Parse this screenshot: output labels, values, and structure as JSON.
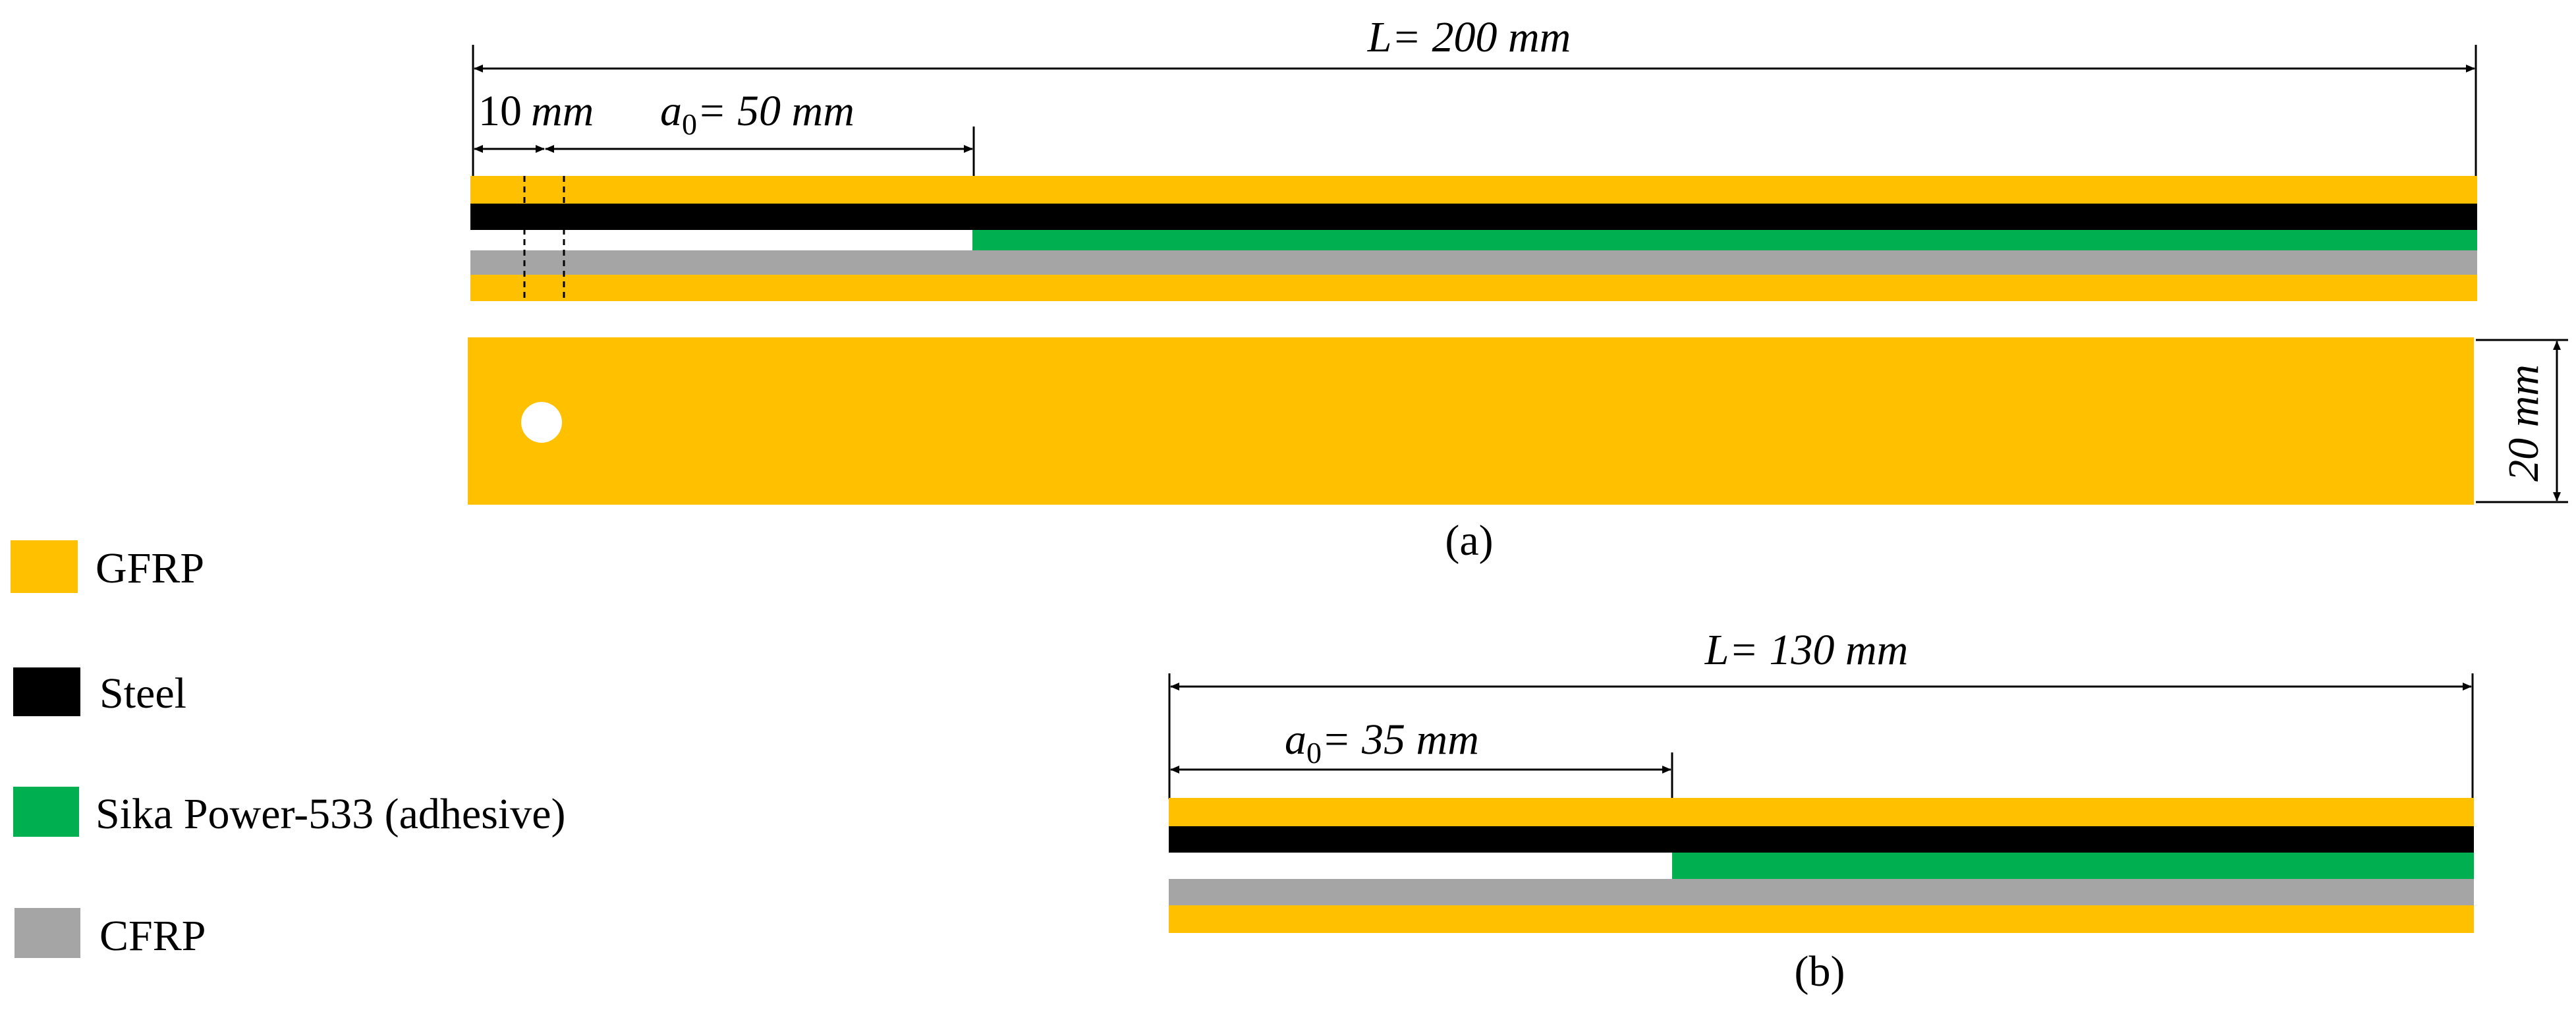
{
  "colors": {
    "gfrp": "#FFC000",
    "steel": "#000000",
    "adhesive": "#00B050",
    "cfrp": "#A5A5A5"
  },
  "legend": {
    "gfrp": "GFRP",
    "steel": "Steel",
    "adhesive": "Sika Power-533 (adhesive)",
    "cfrp": "CFRP"
  },
  "specimen_a": {
    "caption": "(a)",
    "length_prefix": "L= ",
    "length_value": "200 mm",
    "hole_offset_number": "10",
    "hole_offset_unit": "mm",
    "crack_label": "a",
    "crack_sub": "0",
    "crack_value": "= 50 mm",
    "width_label": "20 mm",
    "length_mm": 200,
    "crack_mm": 50,
    "hole_offset_mm": 10,
    "width_mm": 20
  },
  "specimen_b": {
    "caption": "(b)",
    "length_prefix": "L= ",
    "length_value": "130 mm",
    "crack_label": "a",
    "crack_sub": "0",
    "crack_value": "= 35 mm",
    "length_mm": 130,
    "crack_mm": 35
  }
}
